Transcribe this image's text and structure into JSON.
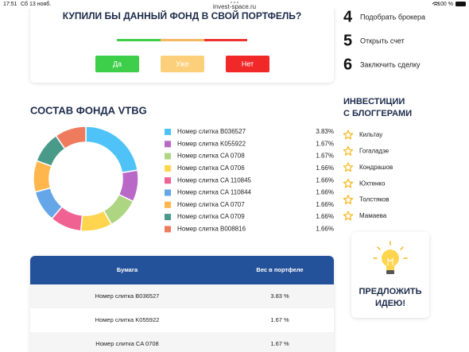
{
  "status_bar": {
    "time": "17:51",
    "date": "Сб 13 нояб.",
    "url": "invest-space.ru",
    "battery": "100 %"
  },
  "poll": {
    "title": "КУПИЛИ БЫ ДАННЫЙ ФОНД В СВОЙ ПОРТФЕЛЬ?",
    "buttons": [
      "Да",
      "Уже",
      "Нет"
    ]
  },
  "steps": [
    {
      "number": "4",
      "label": "Подобрать брокера"
    },
    {
      "number": "5",
      "label": "Открыть счет"
    },
    {
      "number": "6",
      "label": "Заключить сделку"
    }
  ],
  "composition": {
    "title": "СОСТАВ ФОНДА VTBG",
    "type": "donut",
    "items": [
      {
        "name": "Номер слитка B036527",
        "value": 3.83,
        "value_label": "3.83%",
        "color": "#4fc3f7"
      },
      {
        "name": "Номер слитка K055922",
        "value": 1.67,
        "value_label": "1.67%",
        "color": "#ba68c8"
      },
      {
        "name": "Номер слитка CA 0708",
        "value": 1.67,
        "value_label": "1.67%",
        "color": "#aed581"
      },
      {
        "name": "Номер слитка CA 0706",
        "value": 1.66,
        "value_label": "1.66%",
        "color": "#ffd54f"
      },
      {
        "name": "Номер слитка CA 110845",
        "value": 1.66,
        "value_label": "1.66%",
        "color": "#f06292"
      },
      {
        "name": "Номер слитка CA 110844",
        "value": 1.66,
        "value_label": "1.66%",
        "color": "#64a6e8"
      },
      {
        "name": "Номер слитка CA 0707",
        "value": 1.66,
        "value_label": "1.66%",
        "color": "#ffb74d"
      },
      {
        "name": "Номер слитка CA 0709",
        "value": 1.66,
        "value_label": "1.66%",
        "color": "#4a9a8a"
      },
      {
        "name": "Номер слитка B008816",
        "value": 1.66,
        "value_label": "1.66%",
        "color": "#ef7b5f"
      }
    ]
  },
  "table": {
    "header": [
      "Бумага",
      "Вес в портфеле"
    ],
    "rows": [
      [
        "Номер слитка B036527",
        "3.83 %"
      ],
      [
        "Номер слитка K055922",
        "1.67 %"
      ],
      [
        "Номер слитка CA 0708",
        "1.67 %"
      ]
    ]
  },
  "bloggers": {
    "title": [
      "ИНВЕСТИЦИИ",
      "С БЛОГГЕРАМИ"
    ],
    "names": [
      "Кильтау",
      "Гогаладзе",
      "Кондрашов",
      "Юхтенко",
      "Толстяков",
      "Мамаева"
    ]
  },
  "idea": {
    "lines": [
      "ПРЕДЛОЖИТЬ",
      "ИДЕЮ!"
    ]
  }
}
